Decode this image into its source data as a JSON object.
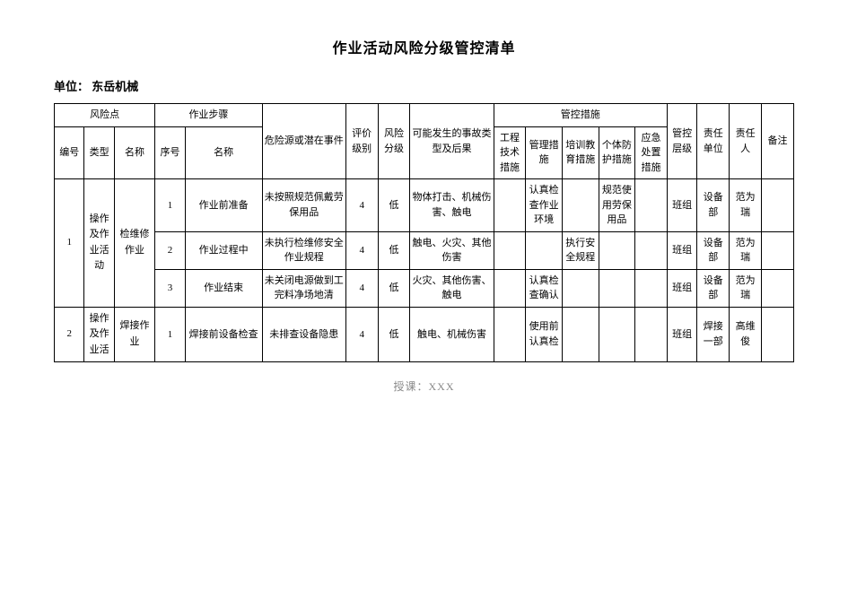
{
  "title": "作业活动风险分级管控清单",
  "unit_label": "单位：",
  "unit_value": "东岳机械",
  "footer": "授课：XXX",
  "headers": {
    "risk_point": "风险点",
    "work_step": "作业步骤",
    "num": "编号",
    "type": "类型",
    "name": "名称",
    "seq": "序号",
    "step_name": "名称",
    "hazard": "危险源或潜在事件",
    "eval_level": "评价级别",
    "risk_grade": "风险分级",
    "accident": "可能发生的事故类型及后果",
    "measures": "管控措施",
    "m_eng": "工程技术措施",
    "m_mgmt": "管理措施",
    "m_train": "培训教育措施",
    "m_ppe": "个体防护措施",
    "m_emerg": "应急处置措施",
    "ctrl_level": "管控层级",
    "resp_dept": "责任单位",
    "resp_person": "责任人",
    "note": "备注"
  },
  "rows": [
    {
      "num": "1",
      "type": "操作及作业活动",
      "name": "检维修作业",
      "steps": [
        {
          "seq": "1",
          "step_name": "作业前准备",
          "hazard": "未按照规范佩戴劳保用品",
          "eval_level": "4",
          "risk_grade": "低",
          "accident": "物体打击、机械伤害、触电",
          "m_eng": "",
          "m_mgmt": "认真检查作业环境",
          "m_train": "",
          "m_ppe": "规范使用劳保用品",
          "m_emerg": "",
          "ctrl_level": "班组",
          "resp_dept": "设备部",
          "resp_person": "范为瑞",
          "note": ""
        },
        {
          "seq": "2",
          "step_name": "作业过程中",
          "hazard": "未执行检维修安全作业规程",
          "eval_level": "4",
          "risk_grade": "低",
          "accident": "触电、火灾、其他伤害",
          "m_eng": "",
          "m_mgmt": "",
          "m_train": "执行安全规程",
          "m_ppe": "",
          "m_emerg": "",
          "ctrl_level": "班组",
          "resp_dept": "设备部",
          "resp_person": "范为瑞",
          "note": ""
        },
        {
          "seq": "3",
          "step_name": "作业结束",
          "hazard": "未关闭电源做到工完料净场地清",
          "eval_level": "4",
          "risk_grade": "低",
          "accident": "火灾、其他伤害、触电",
          "m_eng": "",
          "m_mgmt": "认真检查确认",
          "m_train": "",
          "m_ppe": "",
          "m_emerg": "",
          "ctrl_level": "班组",
          "resp_dept": "设备部",
          "resp_person": "范为瑞",
          "note": ""
        }
      ]
    },
    {
      "num": "2",
      "type": "操作及作业活",
      "name": "焊接作业",
      "steps": [
        {
          "seq": "1",
          "step_name": "焊接前设备检查",
          "hazard": "未排查设备隐患",
          "eval_level": "4",
          "risk_grade": "低",
          "accident": "触电、机械伤害",
          "m_eng": "",
          "m_mgmt": "使用前认真检",
          "m_train": "",
          "m_ppe": "",
          "m_emerg": "",
          "ctrl_level": "班组",
          "resp_dept": "焊接一部",
          "resp_person": "高维俊",
          "note": ""
        }
      ]
    }
  ]
}
